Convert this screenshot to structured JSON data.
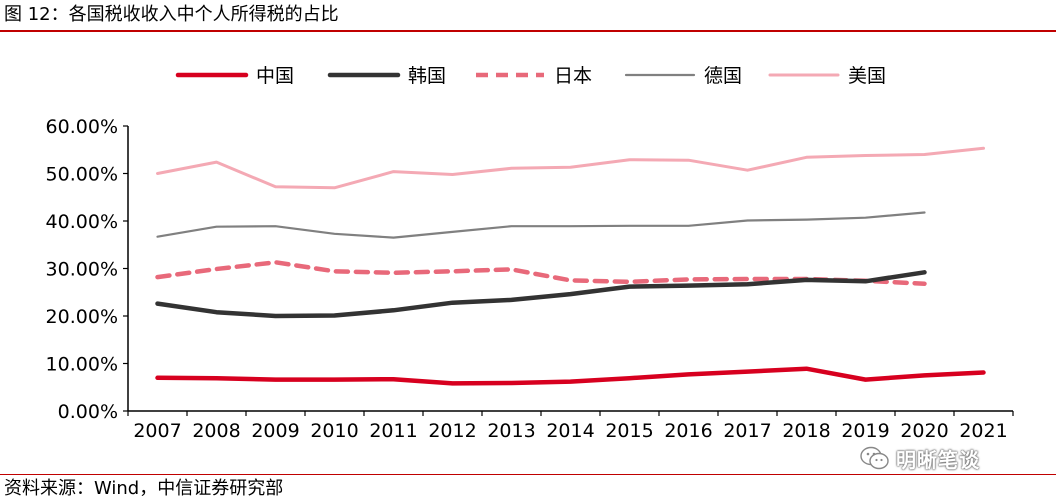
{
  "figure": {
    "title": "图 12：各国税收收入中个人所得税的占比",
    "source": "资料来源：Wind，中信证券研究部",
    "watermark": "明晰笔谈"
  },
  "chart_data": {
    "type": "line",
    "x": [
      "2007",
      "2008",
      "2009",
      "2010",
      "2011",
      "2012",
      "2013",
      "2014",
      "2015",
      "2016",
      "2017",
      "2018",
      "2019",
      "2020",
      "2021"
    ],
    "ylim": [
      0,
      60
    ],
    "yticks": [
      "0.00%",
      "10.00%",
      "20.00%",
      "30.00%",
      "40.00%",
      "50.00%",
      "60.00%"
    ],
    "grid": false,
    "legend_position": "top",
    "series": [
      {
        "name": "中国",
        "color": "#d7001f",
        "style": "solid-thick",
        "values": [
          7.0,
          6.9,
          6.6,
          6.6,
          6.7,
          5.8,
          5.9,
          6.2,
          6.9,
          7.7,
          8.3,
          8.9,
          6.6,
          7.5,
          8.1
        ]
      },
      {
        "name": "韩国",
        "color": "#333333",
        "style": "solid-thick",
        "values": [
          22.6,
          20.8,
          20.0,
          20.1,
          21.2,
          22.8,
          23.4,
          24.6,
          26.2,
          26.4,
          26.7,
          27.6,
          27.3,
          29.2,
          null
        ]
      },
      {
        "name": "日本",
        "color": "#e8697a",
        "style": "dashed",
        "values": [
          28.2,
          29.9,
          31.3,
          29.4,
          29.1,
          29.4,
          29.8,
          27.5,
          27.2,
          27.7,
          27.8,
          27.8,
          27.4,
          26.8,
          null
        ]
      },
      {
        "name": "德国",
        "color": "#808080",
        "style": "solid-thin",
        "values": [
          36.7,
          38.8,
          38.9,
          37.3,
          36.5,
          37.7,
          38.9,
          38.9,
          39.0,
          39.0,
          40.1,
          40.3,
          40.7,
          41.8,
          null
        ]
      },
      {
        "name": "美国",
        "color": "#f4a9b4",
        "style": "solid",
        "values": [
          50.0,
          52.4,
          47.2,
          47.0,
          50.4,
          49.8,
          51.1,
          51.3,
          52.9,
          52.8,
          50.7,
          53.4,
          53.8,
          54.0,
          55.3
        ]
      }
    ]
  }
}
